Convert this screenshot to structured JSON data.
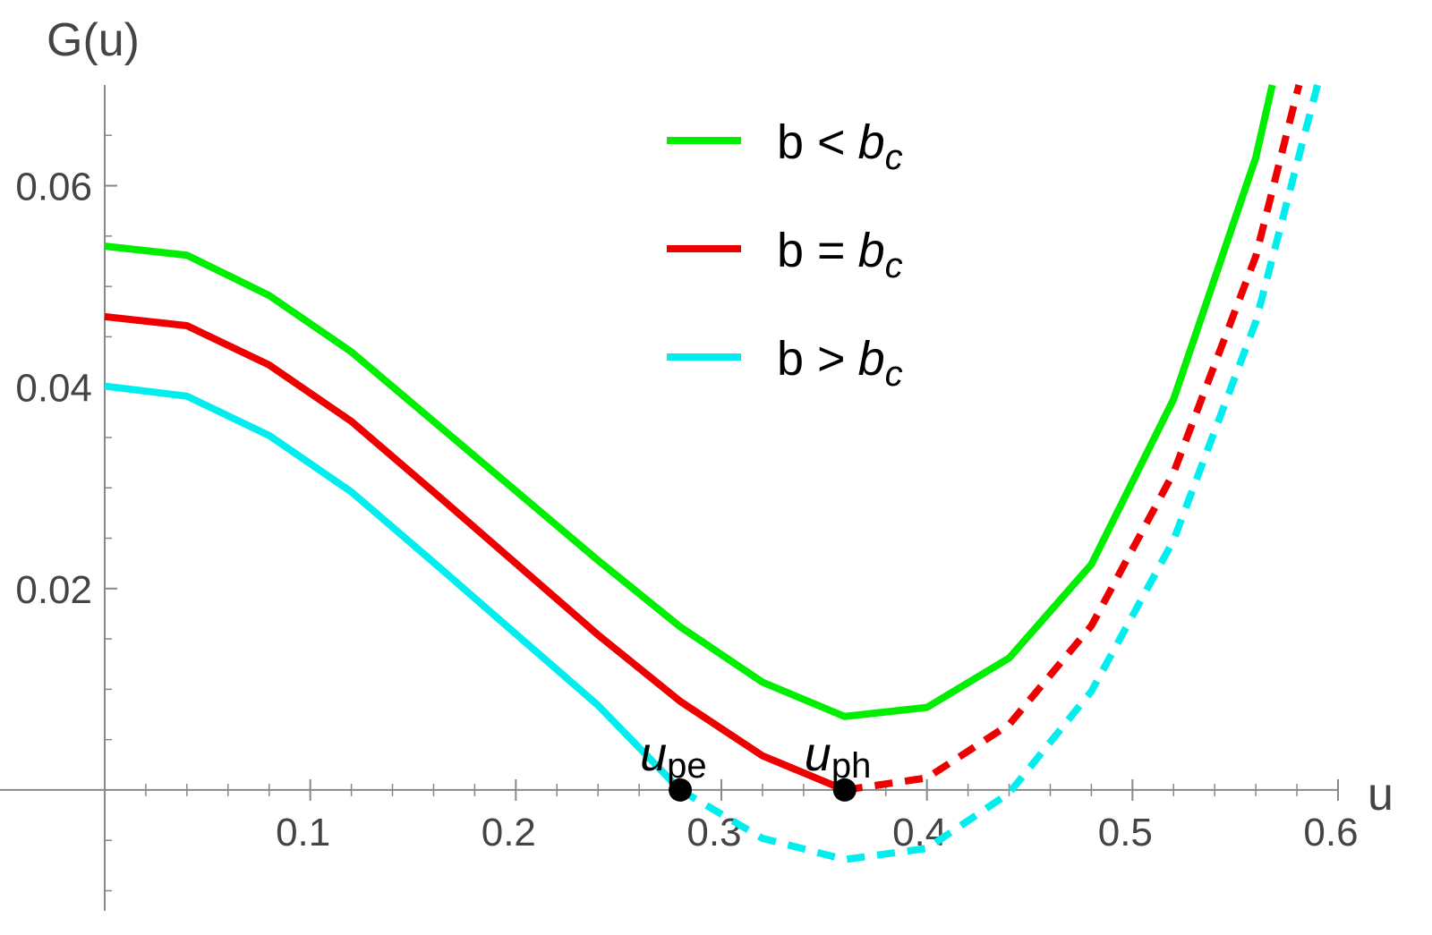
{
  "chart_data": {
    "type": "line",
    "y_label": "G(u)",
    "x_label": "u",
    "xlim": [
      0,
      0.6
    ],
    "ylim": [
      -0.012,
      0.07
    ],
    "xticks": [
      0.1,
      0.2,
      0.3,
      0.4,
      0.5,
      0.6
    ],
    "yticks": [
      0.02,
      0.04,
      0.06
    ],
    "xticks_minor": [
      0.02,
      0.04,
      0.06,
      0.08,
      0.12,
      0.14,
      0.16,
      0.18,
      0.22,
      0.24,
      0.26,
      0.28,
      0.32,
      0.34,
      0.36,
      0.38,
      0.42,
      0.44,
      0.46,
      0.48,
      0.52,
      0.54,
      0.56,
      0.58
    ],
    "yticks_minor": [
      -0.01,
      -0.005,
      0,
      0.005,
      0.01,
      0.015,
      0.025,
      0.03,
      0.035,
      0.045,
      0.05,
      0.055,
      0.065
    ],
    "series": [
      {
        "label": {
          "text": "b <",
          "symbol": "b",
          "subscript": "c"
        },
        "color": "#00ee00",
        "x": [
          0,
          0.04,
          0.08,
          0.12,
          0.16,
          0.2,
          0.24,
          0.28,
          0.32,
          0.36,
          0.4,
          0.44,
          0.48,
          0.52,
          0.56,
          0.568
        ],
        "values": [
          0.054,
          0.0531,
          0.0491,
          0.0435,
          0.0366,
          0.0297,
          0.0228,
          0.0162,
          0.0107,
          0.0073,
          0.0082,
          0.0131,
          0.0224,
          0.0388,
          0.0628,
          0.07
        ]
      },
      {
        "label": {
          "text": "b =",
          "symbol": "b",
          "subscript": "c"
        },
        "color": "#ee0000",
        "dash_after": 0.36,
        "x": [
          0,
          0.04,
          0.08,
          0.12,
          0.16,
          0.2,
          0.24,
          0.28,
          0.32,
          0.36,
          0.4,
          0.44,
          0.48,
          0.52,
          0.56,
          0.581
        ],
        "values": [
          0.047,
          0.0461,
          0.0422,
          0.0366,
          0.0296,
          0.0225,
          0.0154,
          0.0088,
          0.0034,
          0,
          0.0012,
          0.0065,
          0.0163,
          0.0315,
          0.053,
          0.07
        ]
      },
      {
        "label": {
          "text": "b >",
          "symbol": "b",
          "subscript": "c"
        },
        "color": "#00eeee",
        "dash_after": 0.28,
        "x": [
          0,
          0.04,
          0.08,
          0.12,
          0.16,
          0.2,
          0.24,
          0.28,
          0.32,
          0.36,
          0.4,
          0.44,
          0.48,
          0.52,
          0.56,
          0.59
        ],
        "values": [
          0.0401,
          0.0391,
          0.0352,
          0.0296,
          0.0226,
          0.0155,
          0.0084,
          0,
          -0.0048,
          -0.0069,
          -0.0058,
          -0.0003,
          0.0098,
          0.0248,
          0.0465,
          0.07
        ]
      }
    ],
    "points": [
      {
        "symbol": "u",
        "subscript": "pe",
        "x": 0.28,
        "y": 0
      },
      {
        "symbol": "u",
        "subscript": "ph",
        "x": 0.36,
        "y": 0
      }
    ]
  }
}
